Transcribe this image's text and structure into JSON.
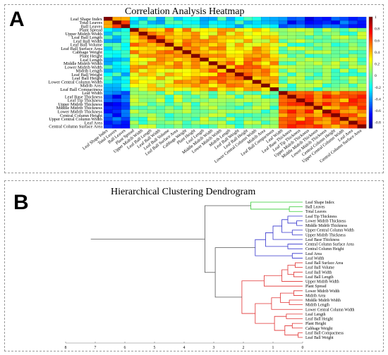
{
  "panels": {
    "a": {
      "label": "A",
      "title": "Correlation Analysis Heatmap"
    },
    "b": {
      "label": "B",
      "title": "Hierarchical Clustering Dendrogram"
    }
  },
  "chart_data": [
    {
      "type": "heatmap",
      "title": "Correlation Analysis Heatmap",
      "variables": [
        "Leaf Shape Index",
        "Total Leaves",
        "Ball Leaves",
        "Plant Spread",
        "Upper Midrib Width",
        "Leaf Ball Length",
        "Leaf Ball Width",
        "Leaf Ball Volume",
        "Leaf Ball Surface Area",
        "Cabbage Weight",
        "Plant Height",
        "Leaf Length",
        "Middle Midrib Width",
        "Lower Midrib Width",
        "Midrib Length",
        "Leaf Ball Weight",
        "Leaf Ball Height",
        "Lower Central Column Width",
        "Midrib Area",
        "Leaf Ball Compactness",
        "Leaf Width",
        "Leaf Base Thickness",
        "Leaf Tip Thickness",
        "Upper Midrib Thickness",
        "Middle Midrib Thickness",
        "Lower Midrib Thickness",
        "Central Column Height",
        "Upper Central Column Width",
        "Leaf Area",
        "Central Column Surface Area"
      ],
      "colorbar": {
        "ticks": [
          1,
          0.8,
          0.6,
          0.4,
          0.2,
          0,
          -0.2,
          -0.4,
          -0.6,
          -0.8
        ],
        "range": [
          -0.9,
          1
        ]
      },
      "colors": {
        "high": "#7f0000",
        "mid": "#ffff33",
        "low": "#00007f"
      }
    },
    {
      "type": "dendrogram",
      "title": "Hierarchical Clustering Dendrogram",
      "x_ticks": [
        8,
        7,
        6,
        5,
        4,
        3,
        2,
        1,
        0
      ],
      "leaves": [
        "Leaf Shape Index",
        "Ball Leaves",
        "Total Leaves",
        "Leaf Tip Thickness",
        "Lower Midrib Thickness",
        "Middle Midrib Thickness",
        "Upper Central Column Width",
        "Upper Midrib Thickness",
        "Leaf Base Thickness",
        "Central Column Surface Area",
        "Central Column Height",
        "Leaf Area",
        "Leaf Width",
        "Leaf Ball Surface Area",
        "Leaf Ball Volume",
        "Leaf Ball Width",
        "Leaf Ball Length",
        "Upper Midrib Width",
        "Plant Spread",
        "Lower Midrib Width",
        "Midrib Area",
        "Middle Midrib Width",
        "Midrib Length",
        "Lower Central Column Width",
        "Leaf Length",
        "Leaf Ball Height",
        "Plant Height",
        "Cabbage Weight",
        "Leaf Ball Compactness",
        "Leaf Ball Weight"
      ],
      "clusters": [
        {
          "color": "#33cc33",
          "leaf_count": 3
        },
        {
          "color": "#3333cc",
          "leaf_count": 10
        },
        {
          "color": "#e03030",
          "leaf_count": 17
        }
      ],
      "merge_heights": {
        "root": 7.15,
        "green_vs_rest": 3.3,
        "blue_vs_red": 2.95
      }
    }
  ]
}
